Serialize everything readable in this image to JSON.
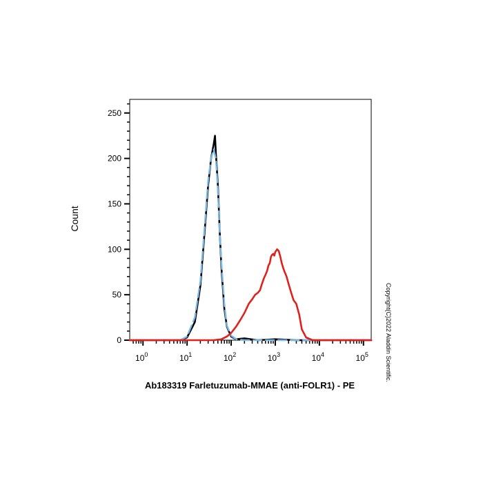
{
  "chart_data": {
    "type": "line",
    "title": "",
    "xlabel": "Ab183319 Farletuzumab-MMAE (anti-FOLR1) - PE",
    "ylabel": "Count",
    "x_scale": "log",
    "xlim": [
      0.5,
      150000
    ],
    "ylim": [
      0,
      265
    ],
    "y_ticks": [
      0,
      50,
      100,
      150,
      200,
      250
    ],
    "x_ticks": [
      {
        "base": "10",
        "exp": "0",
        "value": 1
      },
      {
        "base": "10",
        "exp": "1",
        "value": 10
      },
      {
        "base": "10",
        "exp": "2",
        "value": 100
      },
      {
        "base": "10",
        "exp": "3",
        "value": 1000
      },
      {
        "base": "10",
        "exp": "4",
        "value": 10000
      },
      {
        "base": "10",
        "exp": "5",
        "value": 100000
      }
    ],
    "grid": false,
    "legend": "none",
    "series": [
      {
        "color": "#000000",
        "style": "solid",
        "x": [
          0.5,
          7,
          10,
          15,
          20,
          25,
          30,
          35,
          40,
          43,
          45,
          50,
          55,
          60,
          70,
          80,
          100,
          130,
          200,
          400,
          1000,
          3000,
          10000,
          150000
        ],
        "y": [
          0,
          0,
          3,
          20,
          60,
          120,
          170,
          200,
          215,
          225,
          205,
          170,
          120,
          80,
          35,
          15,
          4,
          1,
          2,
          0,
          1,
          0,
          0,
          0
        ]
      },
      {
        "color": "#7ab8e6",
        "style": "dashed",
        "x": [
          0.5,
          7,
          10,
          15,
          20,
          25,
          30,
          35,
          40,
          45,
          50,
          55,
          60,
          70,
          80,
          100,
          130,
          200,
          150000
        ],
        "y": [
          0,
          0,
          4,
          25,
          65,
          125,
          175,
          200,
          210,
          200,
          165,
          120,
          85,
          40,
          16,
          5,
          1,
          0,
          0
        ]
      },
      {
        "color": "#e0201b",
        "style": "solid",
        "x": [
          0.5,
          40,
          60,
          80,
          100,
          130,
          160,
          200,
          250,
          300,
          350,
          400,
          450,
          500,
          550,
          600,
          650,
          700,
          750,
          800,
          850,
          900,
          950,
          1000,
          1100,
          1200,
          1300,
          1400,
          1500,
          1600,
          1800,
          2000,
          2300,
          2600,
          3000,
          3500,
          4000,
          5000,
          7000,
          150000
        ],
        "y": [
          0,
          0,
          1,
          4,
          8,
          15,
          22,
          30,
          40,
          45,
          50,
          52,
          55,
          62,
          68,
          72,
          76,
          82,
          85,
          92,
          94,
          95,
          93,
          97,
          100,
          98,
          92,
          85,
          80,
          76,
          70,
          62,
          52,
          44,
          40,
          28,
          12,
          3,
          0,
          0
        ]
      }
    ]
  },
  "copyright": "Copyright(C)2022 Aladdin Scientific."
}
